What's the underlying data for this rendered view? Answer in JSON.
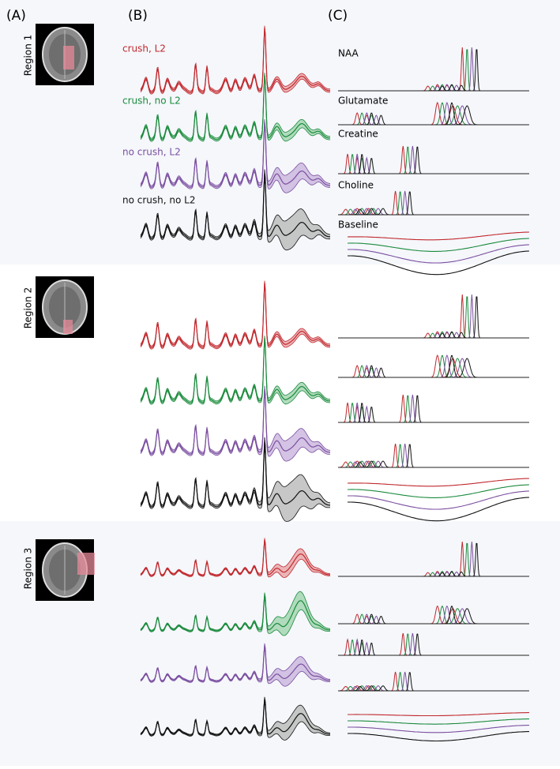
{
  "panels": {
    "a": "(A)",
    "b": "(B)",
    "c": "(C)"
  },
  "regions": [
    "Region 1",
    "Region 2",
    "Region 3"
  ],
  "conditions": [
    "crush, L2",
    "crush, no L2",
    "no crush, L2",
    "no crush, no L2"
  ],
  "metabolites": [
    "NAA",
    "Glutamate",
    "Creatine",
    "Choline",
    "Baseline"
  ]
}
